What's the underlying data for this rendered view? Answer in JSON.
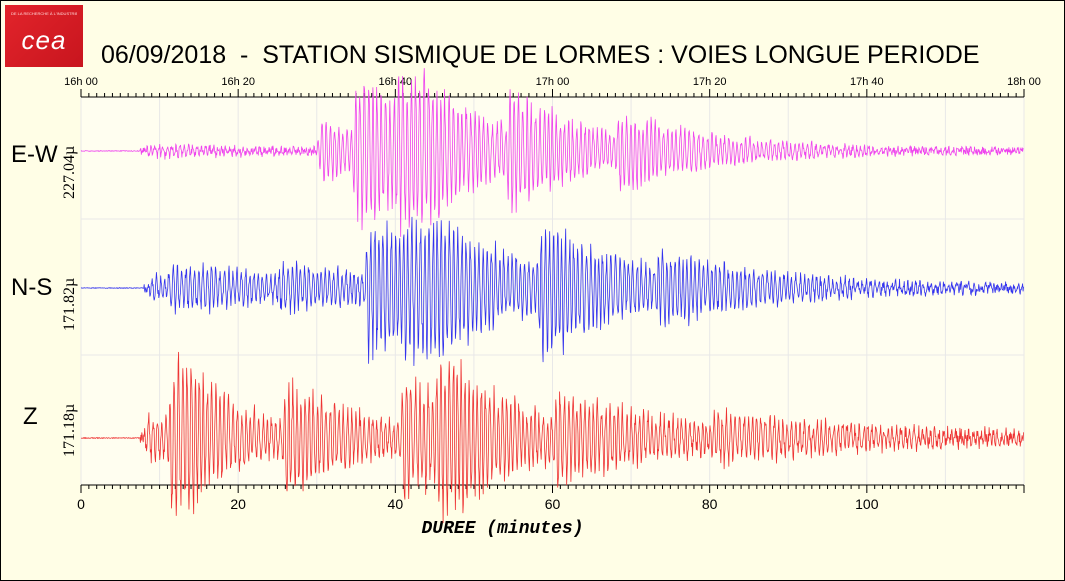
{
  "title": "06/09/2018  -  STATION SISMIQUE DE LORMES : VOIES LONGUE PERIODE",
  "logo": {
    "name": "cea",
    "tagline": "DE LA RECHERCHE À L'INDUSTRIE",
    "color": "#d71920"
  },
  "colors": {
    "background": "#fffee6",
    "grid": "#e8e8e8",
    "ew": "#ee44ee",
    "ns": "#3333ee",
    "z": "#ee3333"
  },
  "chart_data": {
    "type": "line",
    "xlabel": "DUREE (minutes)",
    "xlim": [
      0,
      120
    ],
    "x_ticks": [
      "0",
      "20",
      "40",
      "60",
      "80",
      "100"
    ],
    "top_axis_ticks": [
      "16h 00",
      "16h 20",
      "16h 40",
      "17h 00",
      "17h 20",
      "17h 40",
      "18h 00"
    ],
    "series": [
      {
        "name": "E-W",
        "amplitude_label": "227.04µ",
        "color": "#ee44ee",
        "events": [
          {
            "start": 8,
            "peak": 0.08,
            "decay": 20
          },
          {
            "start": 30,
            "peak": 0.45,
            "decay": 8
          },
          {
            "start": 34.5,
            "peak": 1.0,
            "decay": 9
          },
          {
            "start": 40,
            "peak": 0.85,
            "decay": 10
          },
          {
            "start": 54,
            "peak": 0.55,
            "decay": 12
          },
          {
            "start": 68,
            "peak": 0.35,
            "decay": 14
          }
        ],
        "noise": 0.05,
        "period": 0.55,
        "seed": 11
      },
      {
        "name": "N-S",
        "amplitude_label": "171.82µ",
        "color": "#3333ee",
        "events": [
          {
            "start": 8.5,
            "peak": 0.18,
            "decay": 30
          },
          {
            "start": 11,
            "peak": 0.22,
            "decay": 20
          },
          {
            "start": 25,
            "peak": 0.2,
            "decay": 12
          },
          {
            "start": 36,
            "peak": 0.95,
            "decay": 11
          },
          {
            "start": 41,
            "peak": 0.85,
            "decay": 12
          },
          {
            "start": 58,
            "peak": 0.7,
            "decay": 12
          },
          {
            "start": 73,
            "peak": 0.3,
            "decay": 18
          }
        ],
        "noise": 0.07,
        "period": 0.55,
        "seed": 23
      },
      {
        "name": "Z",
        "amplitude_label": "171.18µ",
        "color": "#ee3333",
        "events": [
          {
            "start": 8,
            "peak": 0.35,
            "decay": 6
          },
          {
            "start": 11,
            "peak": 1.0,
            "decay": 5
          },
          {
            "start": 13,
            "peak": 0.3,
            "decay": 20
          },
          {
            "start": 25.5,
            "peak": 0.55,
            "decay": 10
          },
          {
            "start": 40.5,
            "peak": 0.7,
            "decay": 10
          },
          {
            "start": 45,
            "peak": 0.55,
            "decay": 12
          },
          {
            "start": 60,
            "peak": 0.35,
            "decay": 18
          },
          {
            "start": 80,
            "peak": 0.18,
            "decay": 30
          }
        ],
        "noise": 0.08,
        "period": 0.55,
        "seed": 37
      }
    ]
  }
}
